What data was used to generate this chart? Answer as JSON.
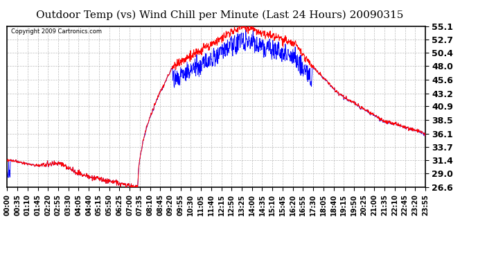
{
  "title": "Outdoor Temp (vs) Wind Chill per Minute (Last 24 Hours) 20090315",
  "copyright": "Copyright 2009 Cartronics.com",
  "background_color": "#ffffff",
  "plot_bg_color": "#ffffff",
  "grid_color": "#aaaaaa",
  "ylim": [
    26.6,
    55.1
  ],
  "yticks": [
    26.6,
    29.0,
    31.4,
    33.7,
    36.1,
    38.5,
    40.9,
    43.2,
    45.6,
    48.0,
    50.4,
    52.7,
    55.1
  ],
  "xtick_labels": [
    "00:00",
    "00:35",
    "01:10",
    "01:45",
    "02:20",
    "02:55",
    "03:30",
    "04:05",
    "04:40",
    "05:15",
    "05:50",
    "06:25",
    "07:00",
    "07:35",
    "08:10",
    "08:45",
    "09:20",
    "09:55",
    "10:30",
    "11:05",
    "11:40",
    "12:15",
    "12:50",
    "13:25",
    "14:00",
    "14:35",
    "15:10",
    "15:45",
    "16:20",
    "16:55",
    "17:30",
    "18:05",
    "18:40",
    "19:15",
    "19:50",
    "20:25",
    "21:00",
    "21:35",
    "22:10",
    "22:45",
    "23:20",
    "23:55"
  ],
  "outdoor_color": "#ff0000",
  "windchill_color": "#0000ff",
  "title_fontsize": 11,
  "tick_fontsize": 7,
  "ytick_fontsize": 9,
  "copyright_fontsize": 6
}
